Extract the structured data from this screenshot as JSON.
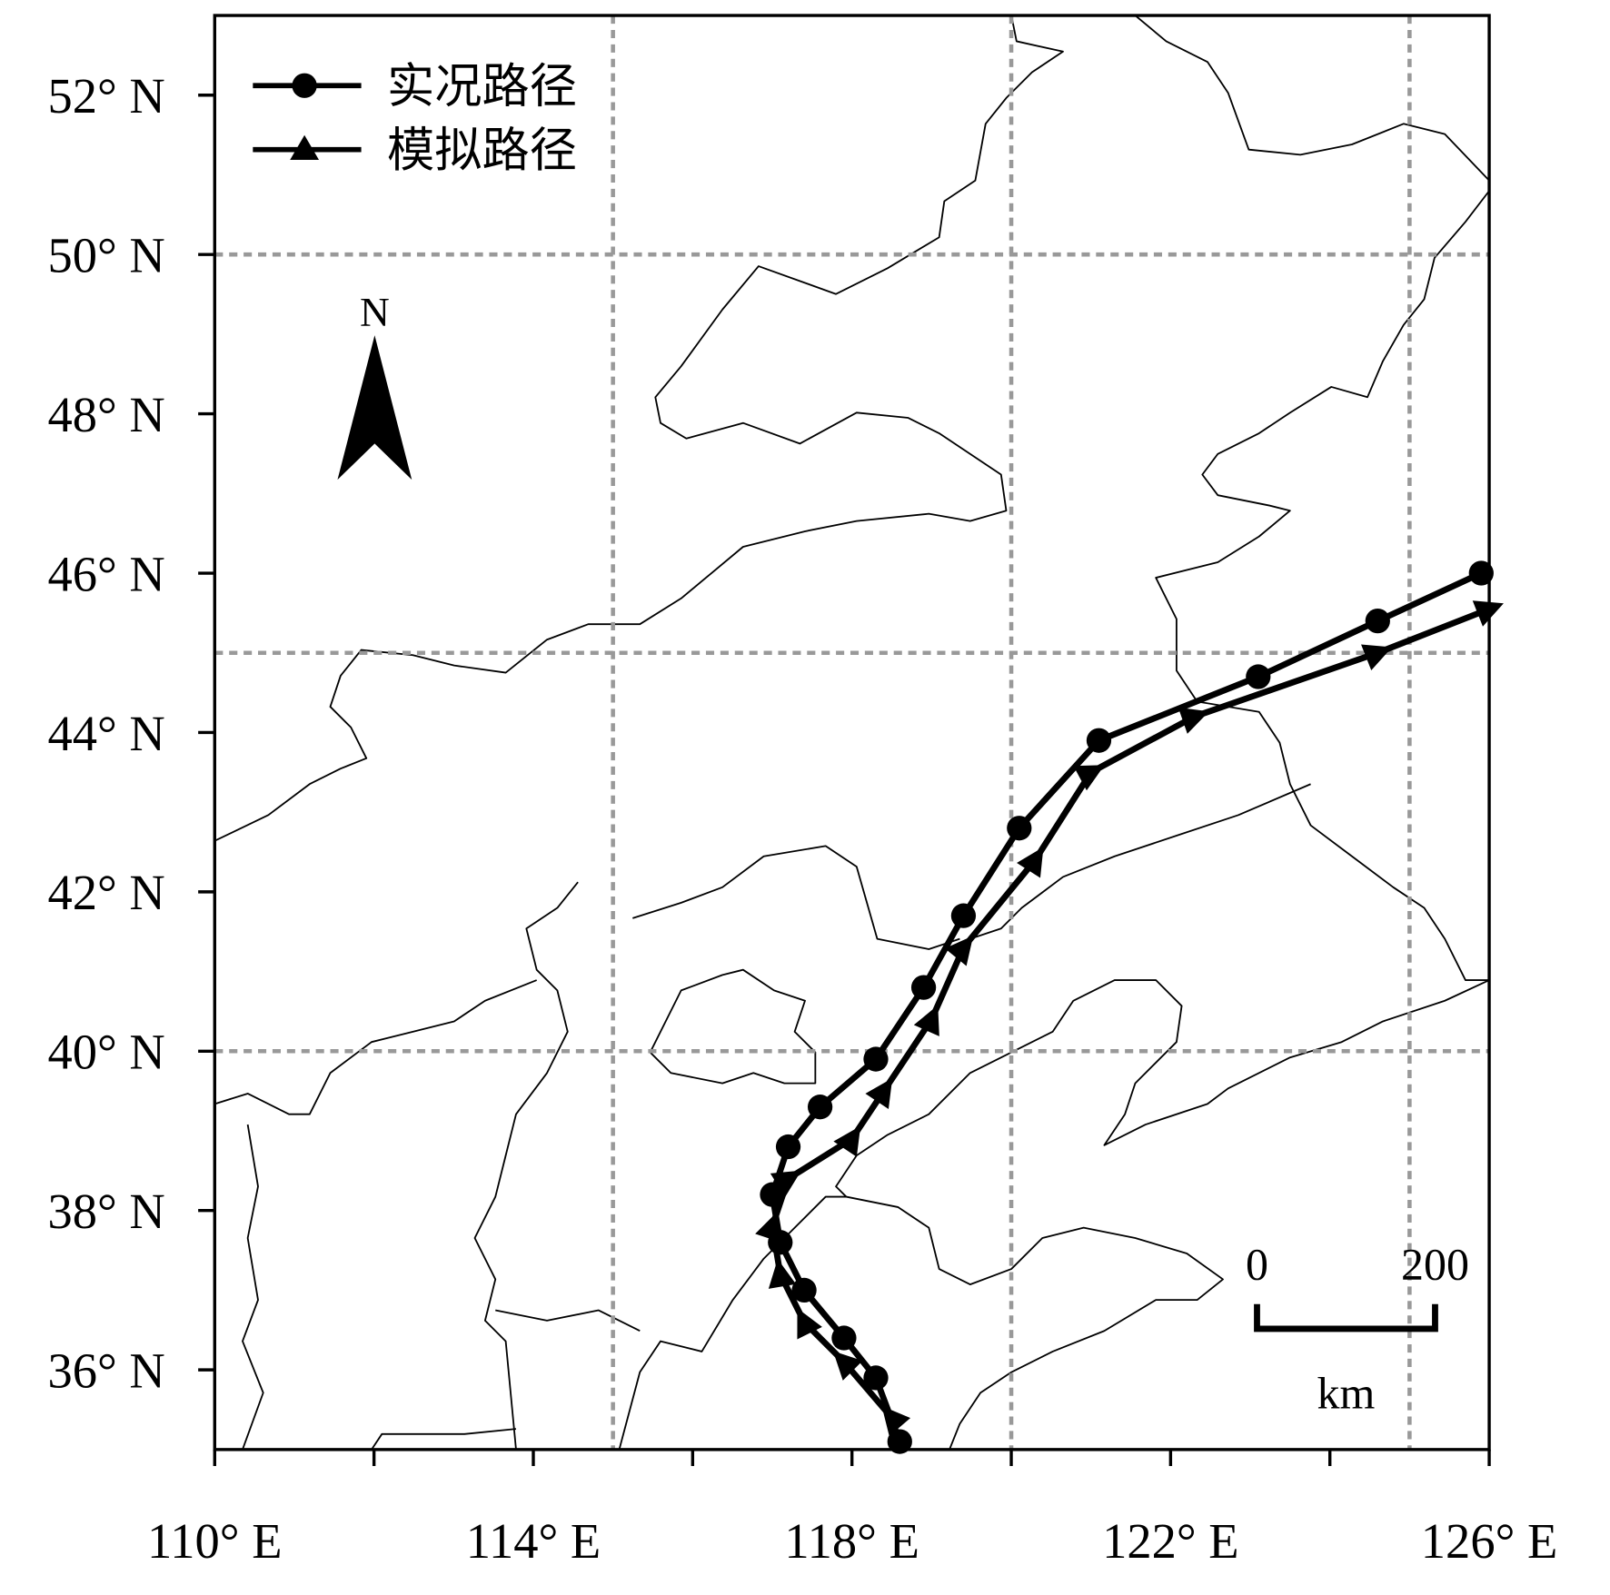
{
  "chart_data": {
    "type": "map",
    "xlim": [
      110,
      126
    ],
    "ylim": [
      35,
      53
    ],
    "xticks": [
      {
        "value": 110,
        "label": "110° E"
      },
      {
        "value": 114,
        "label": "114° E"
      },
      {
        "value": 118,
        "label": "118° E"
      },
      {
        "value": 122,
        "label": "122° E"
      },
      {
        "value": 126,
        "label": "126° E"
      }
    ],
    "xminorticks": [
      112,
      116,
      120,
      124
    ],
    "yticks": [
      {
        "value": 36,
        "label": "36° N"
      },
      {
        "value": 38,
        "label": "38° N"
      },
      {
        "value": 40,
        "label": "40° N"
      },
      {
        "value": 42,
        "label": "42° N"
      },
      {
        "value": 44,
        "label": "44° N"
      },
      {
        "value": 46,
        "label": "46° N"
      },
      {
        "value": 48,
        "label": "48° N"
      },
      {
        "value": 50,
        "label": "50° N"
      },
      {
        "value": 52,
        "label": "52° N"
      }
    ],
    "xgrid": [
      115,
      120,
      125
    ],
    "ygrid": [
      40,
      45,
      50
    ],
    "grid": true,
    "legend": "upper left",
    "north_label": "N",
    "scale_bar": {
      "labels": [
        0,
        200
      ],
      "unit": "km"
    },
    "series": [
      {
        "name": "实况路径",
        "color": "#000000",
        "marker": "circle",
        "x": [
          118.6,
          118.3,
          117.9,
          117.4,
          117.1,
          117.0,
          117.2,
          117.6,
          118.3,
          118.9,
          119.4,
          120.1,
          121.1,
          123.1,
          124.6,
          125.9
        ],
        "values": [
          35.1,
          35.9,
          36.4,
          37.0,
          37.6,
          38.2,
          38.8,
          39.3,
          39.9,
          40.8,
          41.7,
          42.8,
          43.9,
          44.7,
          45.4,
          46.0
        ]
      },
      {
        "name": "模拟路径",
        "color": "#000000",
        "marker": "triangle",
        "x": [
          118.5,
          117.9,
          117.4,
          117.1,
          117.0,
          117.2,
          118.0,
          118.4,
          119.0,
          119.4,
          120.3,
          121.0,
          122.3,
          124.6,
          126.0
        ],
        "values": [
          35.4,
          36.1,
          36.6,
          37.2,
          37.8,
          38.4,
          38.9,
          39.5,
          40.4,
          41.3,
          42.4,
          43.5,
          44.2,
          45.0,
          45.55
        ]
      }
    ]
  }
}
